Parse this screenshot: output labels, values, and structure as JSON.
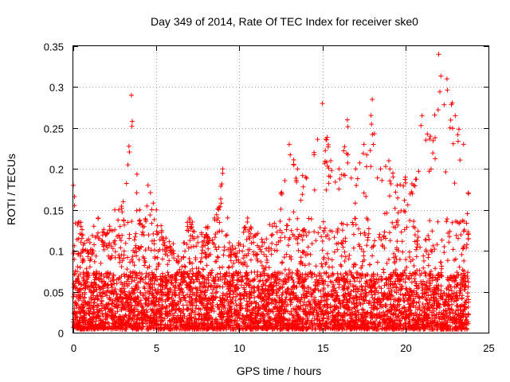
{
  "chart_data": {
    "type": "scatter",
    "title": "Day 349 of 2014, Rate Of TEC Index for receiver ske0",
    "xlabel": "GPS time / hours",
    "ylabel": "ROTI / TECUs",
    "xlim": [
      0,
      25
    ],
    "ylim": [
      0,
      0.35
    ],
    "xticks": [
      0,
      5,
      10,
      15,
      20,
      25
    ],
    "xtick_labels": [
      "0",
      "5",
      "10",
      "15",
      "20",
      "25"
    ],
    "yticks": [
      0,
      0.05,
      0.1,
      0.15,
      0.2,
      0.25,
      0.3,
      0.35
    ],
    "ytick_labels": [
      "0",
      "0.05",
      "0.1",
      "0.15",
      "0.2",
      "0.25",
      "0.3",
      "0.35"
    ],
    "grid": true,
    "legend": "none",
    "marker": "plus",
    "color": "#ff0000",
    "x_range_of_data": [
      0,
      23.8
    ],
    "upper_envelope": [
      [
        0.0,
        0.18
      ],
      [
        0.5,
        0.12
      ],
      [
        1.0,
        0.11
      ],
      [
        1.5,
        0.14
      ],
      [
        2.0,
        0.12
      ],
      [
        2.5,
        0.15
      ],
      [
        3.0,
        0.16
      ],
      [
        3.5,
        0.29
      ],
      [
        4.0,
        0.15
      ],
      [
        4.5,
        0.18
      ],
      [
        5.0,
        0.15
      ],
      [
        5.5,
        0.11
      ],
      [
        6.0,
        0.1
      ],
      [
        6.5,
        0.09
      ],
      [
        7.0,
        0.14
      ],
      [
        7.5,
        0.11
      ],
      [
        8.0,
        0.12
      ],
      [
        8.5,
        0.14
      ],
      [
        9.0,
        0.2
      ],
      [
        9.5,
        0.1
      ],
      [
        10.0,
        0.1
      ],
      [
        10.5,
        0.14
      ],
      [
        11.0,
        0.12
      ],
      [
        11.5,
        0.11
      ],
      [
        12.0,
        0.13
      ],
      [
        12.5,
        0.17
      ],
      [
        13.0,
        0.23
      ],
      [
        13.5,
        0.2
      ],
      [
        14.0,
        0.19
      ],
      [
        14.5,
        0.22
      ],
      [
        15.0,
        0.28
      ],
      [
        15.5,
        0.21
      ],
      [
        16.0,
        0.2
      ],
      [
        16.5,
        0.26
      ],
      [
        17.0,
        0.2
      ],
      [
        17.5,
        0.23
      ],
      [
        18.0,
        0.285
      ],
      [
        18.5,
        0.2
      ],
      [
        19.0,
        0.21
      ],
      [
        19.5,
        0.18
      ],
      [
        20.0,
        0.19
      ],
      [
        20.5,
        0.18
      ],
      [
        21.0,
        0.265
      ],
      [
        21.5,
        0.24
      ],
      [
        22.0,
        0.34
      ],
      [
        22.5,
        0.31
      ],
      [
        23.0,
        0.265
      ],
      [
        23.5,
        0.23
      ],
      [
        23.8,
        0.17
      ]
    ]
  }
}
